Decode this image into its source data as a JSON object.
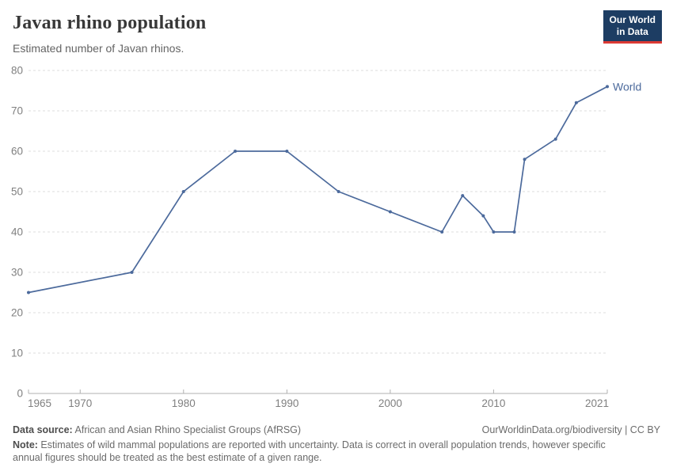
{
  "header": {
    "title": "Javan rhino population",
    "subtitle": "Estimated number of Javan rhinos.",
    "logo": {
      "line1": "Our World",
      "line2": "in Data",
      "bg_color": "#1d3d63",
      "accent_color": "#dc3a34"
    }
  },
  "chart_data": {
    "type": "line",
    "title": "Javan rhino population",
    "xlabel": "",
    "ylabel": "",
    "xlim": [
      1965,
      2021
    ],
    "ylim": [
      0,
      80
    ],
    "x_ticks": [
      1965,
      1970,
      1980,
      1990,
      2000,
      2010,
      2021
    ],
    "y_ticks": [
      0,
      10,
      20,
      30,
      40,
      50,
      60,
      70,
      80
    ],
    "grid": "horizontal-dashed",
    "legend_position": "end-of-line-label",
    "colors": {
      "grid": "#dcdcdc",
      "axis": "#b0b0b0",
      "tick_label": "#808080"
    },
    "series": [
      {
        "name": "World",
        "color": "#4c6a9c",
        "points": [
          [
            1965,
            25
          ],
          [
            1975,
            30
          ],
          [
            1980,
            50
          ],
          [
            1985,
            60
          ],
          [
            1990,
            60
          ],
          [
            1995,
            50
          ],
          [
            2000,
            45
          ],
          [
            2005,
            40
          ],
          [
            2007,
            49
          ],
          [
            2009,
            44
          ],
          [
            2010,
            40
          ],
          [
            2012,
            40
          ],
          [
            2013,
            58
          ],
          [
            2016,
            63
          ],
          [
            2018,
            72
          ],
          [
            2021,
            76
          ]
        ]
      }
    ]
  },
  "footer": {
    "source_label": "Data source:",
    "source_text": " African and Asian Rhino Specialist Groups (AfRSG)",
    "link_text": "OurWorldinData.org/biodiversity | CC BY",
    "note_label": "Note:",
    "note_text": " Estimates of wild mammal populations are reported with uncertainty. Data is correct in overall population trends, however specific annual figures should be treated as the best estimate of a given range."
  }
}
